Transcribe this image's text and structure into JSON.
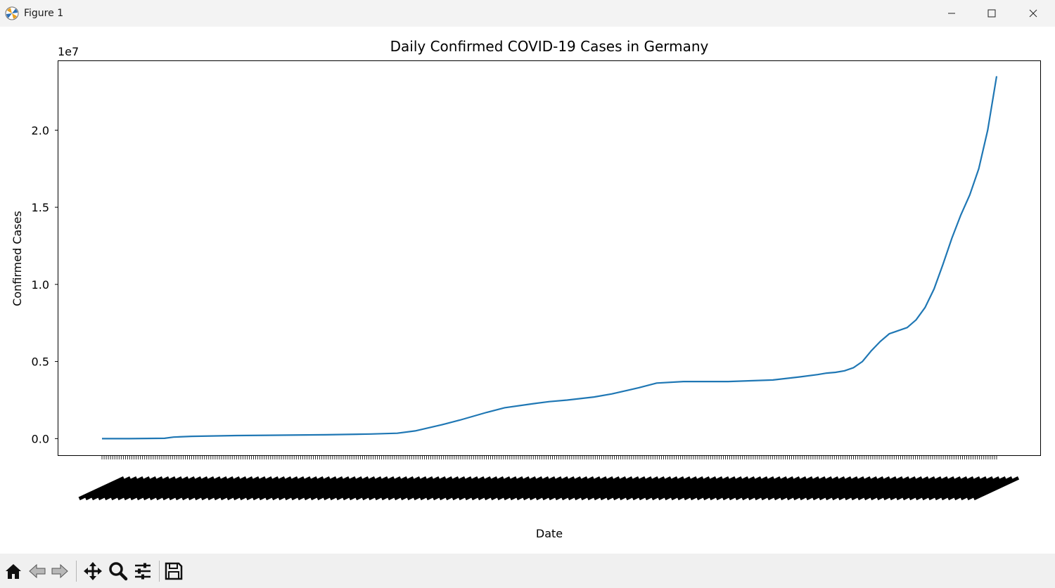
{
  "window": {
    "title": "Figure 1",
    "icons": [
      "matplotlib-logo-icon",
      "minimize-icon",
      "maximize-icon",
      "close-icon"
    ]
  },
  "toolbar": {
    "buttons": [
      "home-icon",
      "back-icon",
      "forward-icon",
      "pan-icon",
      "zoom-icon",
      "configure-subplots-icon",
      "save-icon"
    ]
  },
  "colors": {
    "line": "#1f77b4",
    "axes": "#000000",
    "background": "#ffffff"
  },
  "chart_data": {
    "type": "line",
    "title": "Daily Confirmed COVID-19 Cases in Germany",
    "xlabel": "Date",
    "ylabel": "Confirmed Cases",
    "y_offset_label": "1e7",
    "yticks": [
      0.0,
      0.5,
      1.0,
      1.5,
      2.0
    ],
    "ytick_labels": [
      "0.0",
      "0.5",
      "1.0",
      "1.5",
      "2.0"
    ],
    "ylim": [
      -0.11,
      2.45
    ],
    "y_scale": 10000000,
    "x_tick_labels_note": "one rotated, overlapping date label per observation (illegible)",
    "grid": false,
    "series": [
      {
        "x_fraction": [
          0,
          0.03,
          0.07,
          0.08,
          0.1,
          0.15,
          0.25,
          0.3,
          0.33,
          0.35,
          0.38,
          0.4,
          0.43,
          0.45,
          0.48,
          0.5,
          0.52,
          0.55,
          0.57,
          0.6,
          0.62,
          0.65,
          0.7,
          0.75,
          0.78,
          0.8,
          0.81,
          0.82,
          0.83,
          0.84,
          0.85,
          0.86,
          0.87,
          0.88,
          0.89,
          0.9,
          0.91,
          0.92,
          0.93,
          0.94,
          0.95,
          0.96,
          0.97,
          0.98,
          0.99,
          1.0
        ],
        "values": [
          0.0,
          0.0,
          0.002,
          0.01,
          0.015,
          0.02,
          0.025,
          0.03,
          0.035,
          0.05,
          0.09,
          0.12,
          0.17,
          0.2,
          0.225,
          0.24,
          0.25,
          0.27,
          0.29,
          0.33,
          0.36,
          0.37,
          0.37,
          0.38,
          0.4,
          0.415,
          0.425,
          0.43,
          0.44,
          0.46,
          0.5,
          0.57,
          0.63,
          0.68,
          0.7,
          0.72,
          0.77,
          0.85,
          0.97,
          1.13,
          1.3,
          1.45,
          1.58,
          1.75,
          2.0,
          2.35
        ]
      }
    ]
  }
}
